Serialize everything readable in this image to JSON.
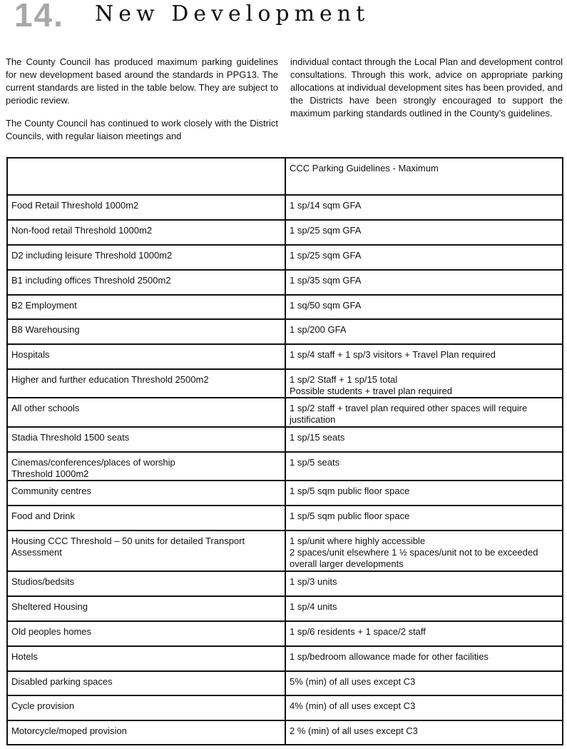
{
  "header": {
    "number": "14.",
    "title": "New Development"
  },
  "intro": {
    "left": [
      "The County Council has produced maximum parking guidelines for new development based around the standards in PPG13.  The current standards are listed in the table below. They are subject to periodic review.",
      "The County Council has continued to work closely with the District Councils, with regular liaison meetings and"
    ],
    "right": [
      "individual contact through the Local Plan and development control consultations.   Through this work, advice on appropriate parking allocations at individual development sites has been provided, and the Districts have been strongly encouraged to support the maximum parking standards outlined in the County’s guidelines."
    ]
  },
  "table": {
    "header": [
      "",
      "CCC Parking Guidelines - Maximum"
    ],
    "rows": [
      [
        "Food Retail Threshold 1000m2",
        "1 sp/14 sqm GFA"
      ],
      [
        "Non-food retail Threshold 1000m2",
        "1 sp/25 sqm GFA"
      ],
      [
        "D2 including leisure Threshold 1000m2",
        "1 sp/25 sqm GFA"
      ],
      [
        "B1 including offices Threshold 2500m2",
        "1 sp/35 sqm GFA"
      ],
      [
        "B2 Employment",
        "1 sq/50 sqm GFA"
      ],
      [
        "B8 Warehousing",
        "1 sp/200 GFA"
      ],
      [
        "Hospitals",
        "1 sp/4 staff + 1 sp/3 visitors + Travel Plan required"
      ],
      [
        "Higher and further education Threshold 2500m2",
        "1 sp/2 Staff + 1 sp/15 total\nPossible students + travel plan required"
      ],
      [
        "All other schools",
        "1 sp/2 staff + travel plan required other spaces will require justification"
      ],
      [
        "Stadia Threshold 1500 seats",
        "1 sp/15 seats"
      ],
      [
        "Cinemas/conferences/places of worship\nThreshold 1000m2",
        "1 sp/5 seats"
      ],
      [
        "Community centres",
        "1 sp/5 sqm public floor space"
      ],
      [
        "Food and Drink",
        "1 sp/5 sqm public floor space"
      ],
      [
        "Housing CCC Threshold  – 50 units for detailed Transport Assessment",
        "1 sp/unit where highly accessible\n2 spaces/unit elsewhere 1 ½  spaces/unit not to be exceeded overall larger developments"
      ],
      [
        "Studios/bedsits",
        "1 sp/3 units"
      ],
      [
        "Sheltered Housing",
        "1 sp/4 units"
      ],
      [
        "Old peoples homes",
        "1 sp/6 residents + 1 space/2 staff"
      ],
      [
        "Hotels",
        "1 sp/bedroom allowance made for other facilities"
      ],
      [
        "Disabled parking spaces",
        "5% (min) of all uses except C3"
      ],
      [
        "Cycle provision",
        "4% (min) of all uses except C3"
      ],
      [
        "Motorcycle/moped provision",
        "2 % (min) of all uses except C3"
      ]
    ]
  }
}
